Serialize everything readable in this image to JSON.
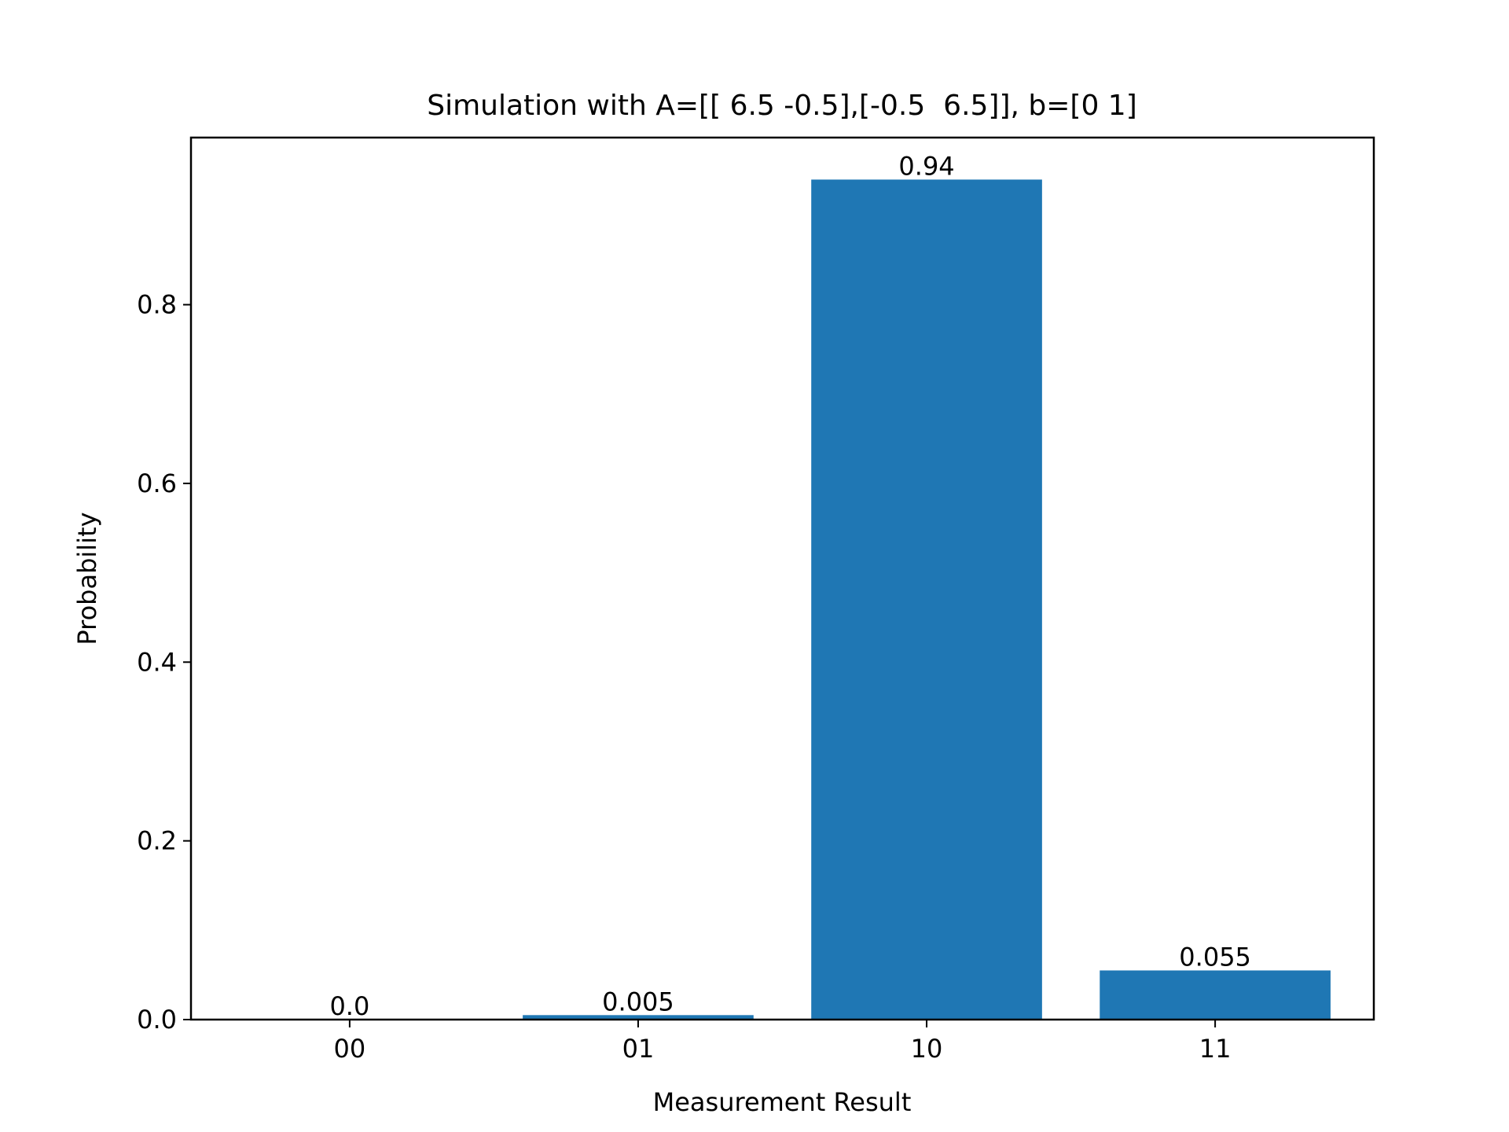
{
  "chart_data": {
    "type": "bar",
    "title": "Simulation with A=[[ 6.5 -0.5],[-0.5  6.5]], b=[0 1]",
    "xlabel": "Measurement Result",
    "ylabel": "Probability",
    "categories": [
      "00",
      "01",
      "10",
      "11"
    ],
    "values": [
      0.0,
      0.005,
      0.94,
      0.055
    ],
    "value_labels": [
      "0.0",
      "0.005",
      "0.94",
      "0.055"
    ],
    "ylim": [
      0,
      0.987
    ],
    "yticks": [
      0.0,
      0.2,
      0.4,
      0.6,
      0.8
    ],
    "ytick_labels": [
      "0.0",
      "0.2",
      "0.4",
      "0.6",
      "0.8"
    ],
    "bar_color": "#1f77b4",
    "grid": false,
    "legend": "none"
  }
}
